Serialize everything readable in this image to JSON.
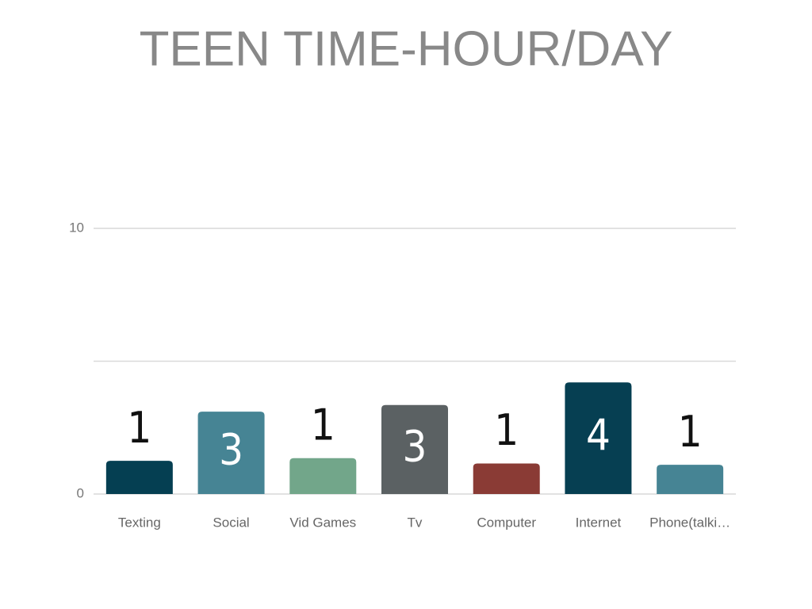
{
  "chart_data": {
    "type": "bar",
    "title": "TEEN TIME-HOUR/DAY",
    "categories": [
      "Texting",
      "Social",
      "Vid Games",
      "Tv",
      "Computer",
      "Internet",
      "Phone(talki…"
    ],
    "values": [
      1.25,
      3.1,
      1.35,
      3.35,
      1.15,
      4.2,
      1.1
    ],
    "value_labels": [
      "1",
      "3",
      "1",
      "3",
      "1",
      "4",
      "1"
    ],
    "colors": [
      "#053f52",
      "#468494",
      "#72a68a",
      "#5b6163",
      "#8a3b35",
      "#063f52",
      "#468494"
    ],
    "ylim": [
      0,
      10
    ],
    "yticks": [
      0,
      {
        "value": 5,
        "label": null
      },
      10
    ],
    "grid": true
  }
}
